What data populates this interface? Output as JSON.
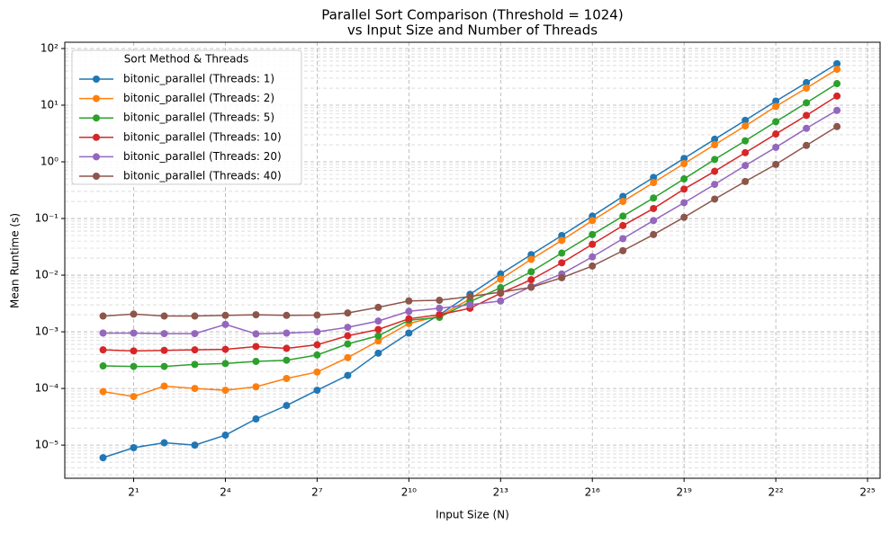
{
  "chart_data": {
    "type": "line",
    "title": "Parallel Sort Comparison (Threshold = 1024)",
    "subtitle": "vs Input Size and Number of Threads",
    "x_label": "Input Size (N)",
    "y_label": "Mean Runtime (s)",
    "xscale": "log",
    "yscale": "log",
    "grid": true,
    "minor_grid": true,
    "legend_title": "Sort Method & Threads",
    "legend_position": "upper-left",
    "xlim": [
      0.42,
      44600000
    ],
    "ylim": [
      2.6e-06,
      129
    ],
    "xticks": [
      {
        "value": 2,
        "label": "2¹"
      },
      {
        "value": 16,
        "label": "2⁴"
      },
      {
        "value": 128,
        "label": "2⁷"
      },
      {
        "value": 1024,
        "label": "2¹⁰"
      },
      {
        "value": 8192,
        "label": "2¹³"
      },
      {
        "value": 65536,
        "label": "2¹⁶"
      },
      {
        "value": 524288,
        "label": "2¹⁹"
      },
      {
        "value": 4194304,
        "label": "2²²"
      },
      {
        "value": 33554432,
        "label": "2²⁵"
      }
    ],
    "yticks": [
      {
        "value": 1e-05,
        "label": "10⁻⁵"
      },
      {
        "value": 0.0001,
        "label": "10⁻⁴"
      },
      {
        "value": 0.001,
        "label": "10⁻³"
      },
      {
        "value": 0.01,
        "label": "10⁻²"
      },
      {
        "value": 0.1,
        "label": "10⁻¹"
      },
      {
        "value": 1,
        "label": "10⁰"
      },
      {
        "value": 10,
        "label": "10¹"
      },
      {
        "value": 100,
        "label": "10²"
      }
    ],
    "x": [
      1,
      2,
      4,
      8,
      16,
      32,
      64,
      128,
      256,
      512,
      1024,
      2048,
      4096,
      8192,
      16384,
      32768,
      65536,
      131072,
      262144,
      524288,
      1048576,
      2097152,
      4194304,
      8388608,
      16777216
    ],
    "series": [
      {
        "name": "bitonic_parallel (Threads: 1)",
        "color": "#1f77b4",
        "values": [
          6e-06,
          9e-06,
          1.1e-05,
          1e-05,
          1.5e-05,
          2.9e-05,
          5e-05,
          9.3e-05,
          0.00017,
          0.00042,
          0.00095,
          0.002,
          0.0046,
          0.0105,
          0.023,
          0.05,
          0.11,
          0.245,
          0.53,
          1.15,
          2.5,
          5.4,
          11.8,
          25,
          54
        ]
      },
      {
        "name": "bitonic_parallel (Threads: 2)",
        "color": "#ff7f0e",
        "values": [
          8.8e-05,
          7.2e-05,
          0.00011,
          0.0001,
          9.3e-05,
          0.000107,
          0.00015,
          0.000195,
          0.00035,
          0.00069,
          0.0014,
          0.0019,
          0.0038,
          0.0085,
          0.019,
          0.041,
          0.092,
          0.2,
          0.43,
          0.93,
          2.0,
          4.3,
          9.5,
          20,
          43
        ]
      },
      {
        "name": "bitonic_parallel (Threads: 5)",
        "color": "#2ca02c",
        "values": [
          0.00025,
          0.000245,
          0.000245,
          0.000265,
          0.000275,
          0.0003,
          0.000315,
          0.00039,
          0.00061,
          0.00085,
          0.0016,
          0.0018,
          0.0034,
          0.006,
          0.0115,
          0.0245,
          0.052,
          0.11,
          0.23,
          0.5,
          1.1,
          2.35,
          5.1,
          11,
          24
        ]
      },
      {
        "name": "bitonic_parallel (Threads: 10)",
        "color": "#d62728",
        "values": [
          0.00048,
          0.00046,
          0.00047,
          0.00048,
          0.00049,
          0.00055,
          0.00051,
          0.00059,
          0.00085,
          0.0011,
          0.0017,
          0.002,
          0.0026,
          0.0048,
          0.0083,
          0.0165,
          0.035,
          0.075,
          0.15,
          0.33,
          0.68,
          1.45,
          3.1,
          6.6,
          14.5
        ]
      },
      {
        "name": "bitonic_parallel (Threads: 20)",
        "color": "#9467bd",
        "values": [
          0.00095,
          0.00095,
          0.00093,
          0.00093,
          0.00135,
          0.00092,
          0.00095,
          0.001,
          0.0012,
          0.00155,
          0.0023,
          0.0026,
          0.003,
          0.0035,
          0.0063,
          0.0105,
          0.021,
          0.044,
          0.092,
          0.19,
          0.4,
          0.86,
          1.8,
          3.9,
          8.1
        ]
      },
      {
        "name": "bitonic_parallel (Threads: 40)",
        "color": "#8c564b",
        "values": [
          0.0019,
          0.00205,
          0.0019,
          0.0019,
          0.00195,
          0.002,
          0.00195,
          0.00197,
          0.00215,
          0.0027,
          0.0035,
          0.0036,
          0.0042,
          0.005,
          0.0061,
          0.009,
          0.0145,
          0.027,
          0.052,
          0.105,
          0.22,
          0.45,
          0.9,
          1.95,
          4.2
        ]
      }
    ]
  }
}
